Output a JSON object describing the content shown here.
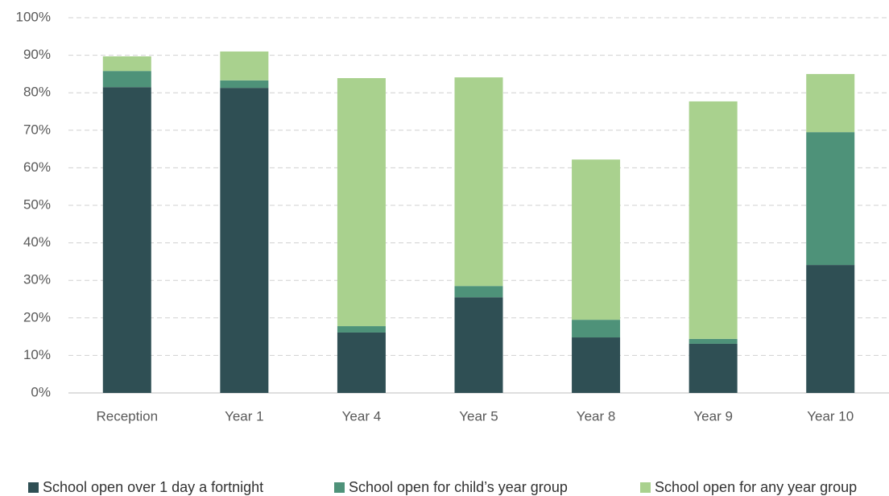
{
  "chart_data": {
    "type": "stacked-bar",
    "categories": [
      "Reception",
      "Year 1",
      "Year 4",
      "Year 5",
      "Year 8",
      "Year 9",
      "Year 10"
    ],
    "series": [
      {
        "name": "School open over 1 day a fortnight",
        "color": "#2f4f54",
        "values": [
          81.5,
          81.3,
          16.1,
          25.5,
          14.8,
          13.1,
          34.1
        ]
      },
      {
        "name": "School open for child’s year group",
        "color": "#4e9279",
        "values": [
          4.3,
          2.0,
          1.7,
          3.0,
          4.7,
          1.3,
          35.4
        ]
      },
      {
        "name": "School open for any year group",
        "color": "#a9d18e",
        "values": [
          3.9,
          7.7,
          66.1,
          55.6,
          42.7,
          63.3,
          15.5
        ]
      }
    ],
    "ylim": [
      0,
      100
    ],
    "yticks": [
      {
        "value": 0,
        "label": "0%"
      },
      {
        "value": 10,
        "label": "10%"
      },
      {
        "value": 20,
        "label": "20%"
      },
      {
        "value": 30,
        "label": "30%"
      },
      {
        "value": 40,
        "label": "40%"
      },
      {
        "value": 50,
        "label": "50%"
      },
      {
        "value": 60,
        "label": "60%"
      },
      {
        "value": 70,
        "label": "70%"
      },
      {
        "value": 80,
        "label": "80%"
      },
      {
        "value": 90,
        "label": "90%"
      },
      {
        "value": 100,
        "label": "100%"
      }
    ],
    "grid": true
  }
}
